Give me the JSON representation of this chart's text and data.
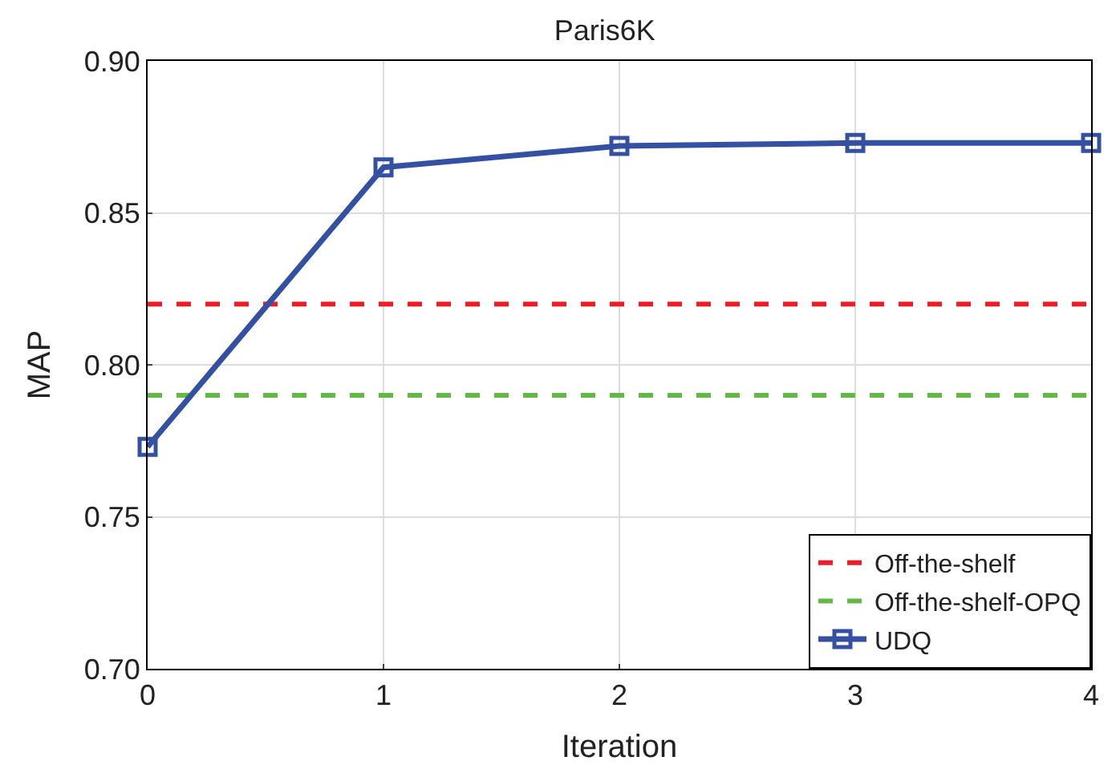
{
  "chart_data": {
    "type": "line",
    "title": "Paris6K",
    "xlabel": "Iteration",
    "ylabel": "MAP",
    "x": [
      0,
      1,
      2,
      3,
      4
    ],
    "series": [
      {
        "name": "Off-the-shelf",
        "color": "#ee1c25",
        "values": [
          0.82,
          0.82,
          0.82,
          0.82,
          0.82
        ],
        "line_style": "dashed",
        "marker": "none"
      },
      {
        "name": "Off-the-shelf-OPQ",
        "color": "#62b946",
        "values": [
          0.79,
          0.79,
          0.79,
          0.79,
          0.79
        ],
        "line_style": "dashed",
        "marker": "none"
      },
      {
        "name": "UDQ",
        "color": "#3450a3",
        "values": [
          0.773,
          0.865,
          0.872,
          0.873,
          0.873
        ],
        "line_style": "solid",
        "marker": "square"
      }
    ],
    "xlim": [
      0,
      4
    ],
    "xticks": [
      0,
      1,
      2,
      3,
      4
    ],
    "ylim": [
      0.7,
      0.9
    ],
    "yticks": [
      {
        "value": 0.7,
        "label": "0.70"
      },
      {
        "value": 0.75,
        "label": "0.75"
      },
      {
        "value": 0.8,
        "label": "0.80"
      },
      {
        "value": 0.85,
        "label": "0.85"
      },
      {
        "value": 0.9,
        "label": "0.90"
      }
    ],
    "grid": true,
    "legend": "bottom right"
  }
}
